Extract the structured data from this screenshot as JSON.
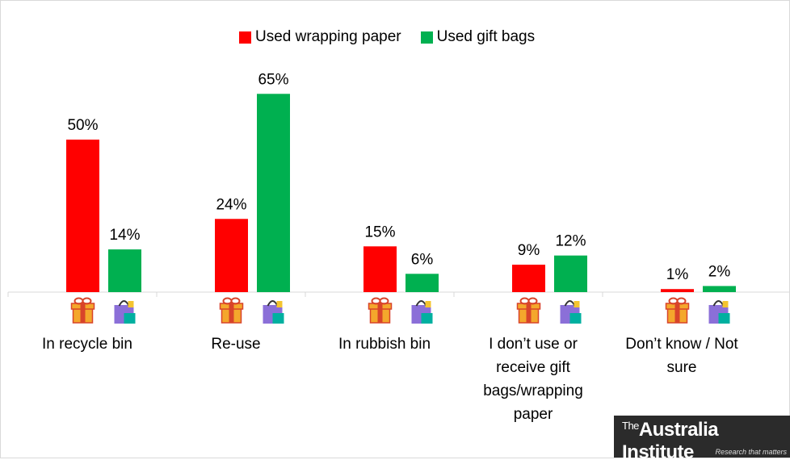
{
  "chart_data": {
    "type": "bar",
    "categories": [
      "In recycle bin",
      "Re-use",
      "In rubbish bin",
      "I don’t use or receive gift bags/wrapping paper",
      "Don’t know / Not sure"
    ],
    "category_lines": [
      [
        "In recycle bin"
      ],
      [
        "Re-use"
      ],
      [
        "In rubbish bin"
      ],
      [
        "I don’t use or",
        "receive gift",
        "bags/wrapping",
        "paper"
      ],
      [
        "Don’t know / Not",
        "sure"
      ]
    ],
    "series": [
      {
        "name": "Used wrapping paper",
        "color": "#ff0000",
        "values": [
          50,
          24,
          15,
          9,
          1
        ],
        "labels": [
          "50%",
          "24%",
          "15%",
          "9%",
          "1%"
        ],
        "icon": "gift-icon"
      },
      {
        "name": "Used gift bags",
        "color": "#00b050",
        "values": [
          14,
          65,
          6,
          12,
          2
        ],
        "labels": [
          "14%",
          "65%",
          "6%",
          "12%",
          "2%"
        ],
        "icon": "gift-bag-icon"
      }
    ],
    "ylim": [
      0,
      70
    ],
    "legend_position": "top-center",
    "grid": false
  },
  "logo": {
    "text": "TheAustraliaInstitute",
    "prefix": "The",
    "name": "Australia Institute",
    "tagline": "Research that matters"
  }
}
